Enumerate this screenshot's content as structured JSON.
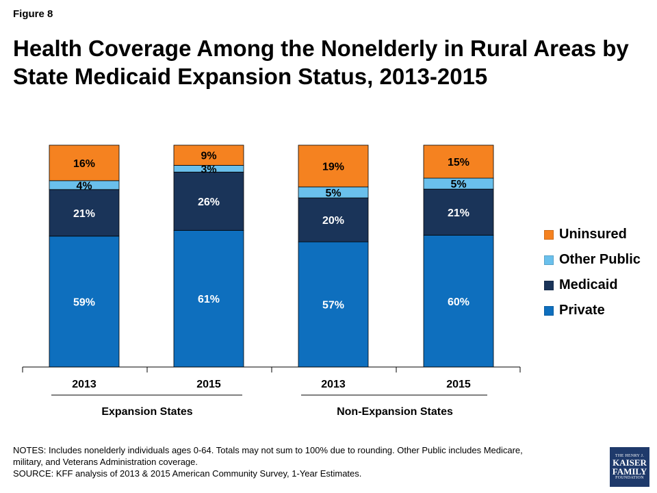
{
  "figure_label": "Figure 8",
  "title_lines": [
    "Health Coverage Among the Nonelderly in Rural Areas by",
    "State Medicaid Expansion Status, 2013-2015"
  ],
  "legend": [
    {
      "name": "Uninsured",
      "color": "#f58220"
    },
    {
      "name": "Other Public",
      "color": "#6ac0ec"
    },
    {
      "name": "Medicaid",
      "color": "#1a3459"
    },
    {
      "name": "Private",
      "color": "#0e6fbe"
    }
  ],
  "chart_data": {
    "type": "bar",
    "stacked": true,
    "categories": [
      "2013",
      "2015",
      "2013",
      "2015"
    ],
    "groups": [
      {
        "label": "Expansion States",
        "categories": [
          "2013",
          "2015"
        ]
      },
      {
        "label": "Non-Expansion States",
        "categories": [
          "2013",
          "2015"
        ]
      }
    ],
    "series": [
      {
        "name": "Private",
        "color": "#0e6fbe",
        "values": [
          59,
          61,
          57,
          60
        ],
        "labels": [
          "59%",
          "61%",
          "57%",
          "60%"
        ]
      },
      {
        "name": "Medicaid",
        "color": "#1a3459",
        "values": [
          21,
          26,
          20,
          21
        ],
        "labels": [
          "21%",
          "26%",
          "20%",
          "21%"
        ]
      },
      {
        "name": "Other Public",
        "color": "#6ac0ec",
        "values": [
          4,
          3,
          5,
          5
        ],
        "labels": [
          "4%",
          "3%",
          "5%",
          "5%"
        ]
      },
      {
        "name": "Uninsured",
        "color": "#f58220",
        "values": [
          16,
          9,
          19,
          15
        ],
        "labels": [
          "16%",
          "9%",
          "19%",
          "15%"
        ]
      }
    ],
    "ylim": [
      0,
      100
    ],
    "legend_position": "right",
    "grid": false
  },
  "notes": {
    "line1": "NOTES: Includes nonelderly individuals ages 0-64. Totals may not sum to 100% due to rounding. Other Public includes Medicare,",
    "line2": "military, and Veterans Administration coverage.",
    "line3": "SOURCE: KFF analysis of 2013 & 2015 American Community Survey, 1-Year Estimates."
  },
  "logo": {
    "line1": "THE HENRY J.",
    "line2": "KAISER",
    "line3": "FAMILY",
    "line4": "FOUNDATION"
  }
}
